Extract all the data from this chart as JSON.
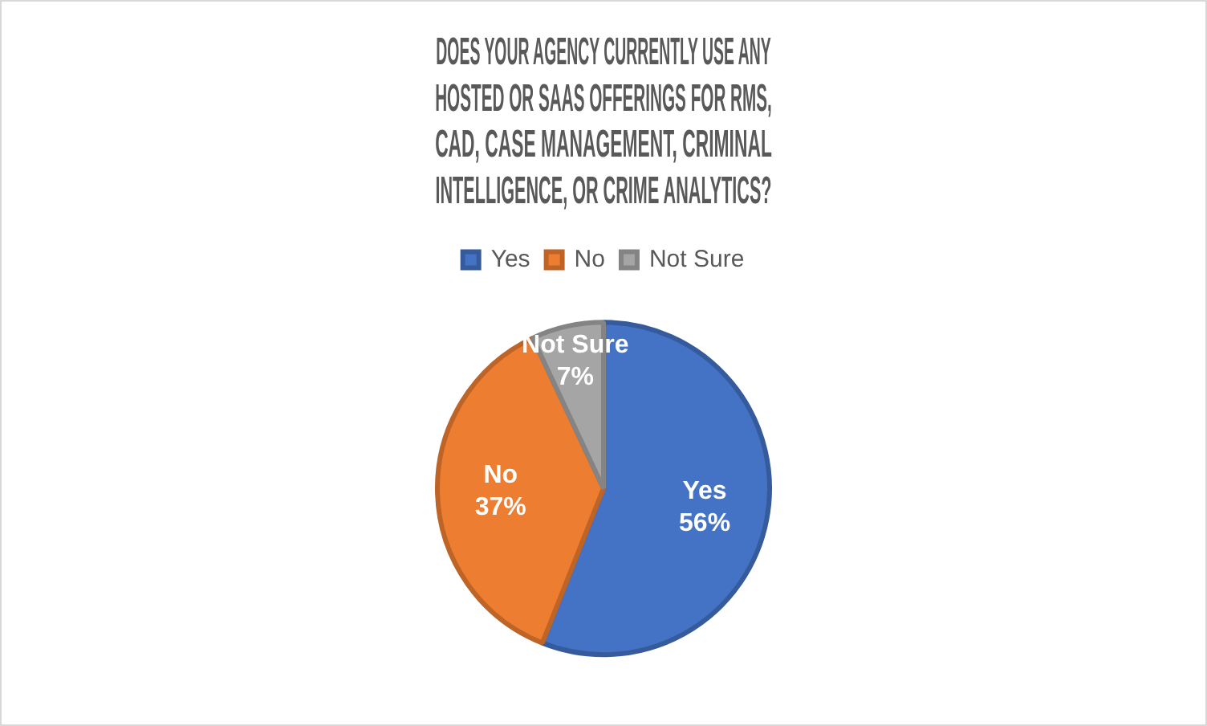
{
  "chart_data": {
    "type": "pie",
    "title": "DOES YOUR AGENCY CURRENTLY USE ANY HOSTED OR SAAS OFFERINGS FOR RMS, CAD, CASE MANAGEMENT, CRIMINAL INTELLIGENCE, OR CRIME ANALYTICS?",
    "categories": [
      "Yes",
      "No",
      "Not Sure"
    ],
    "values": [
      56,
      37,
      7
    ],
    "colors": [
      "#4472c4",
      "#ed7d31",
      "#a5a5a5"
    ],
    "value_labels": [
      "56%",
      "37%",
      "7%"
    ],
    "legend": "top"
  }
}
